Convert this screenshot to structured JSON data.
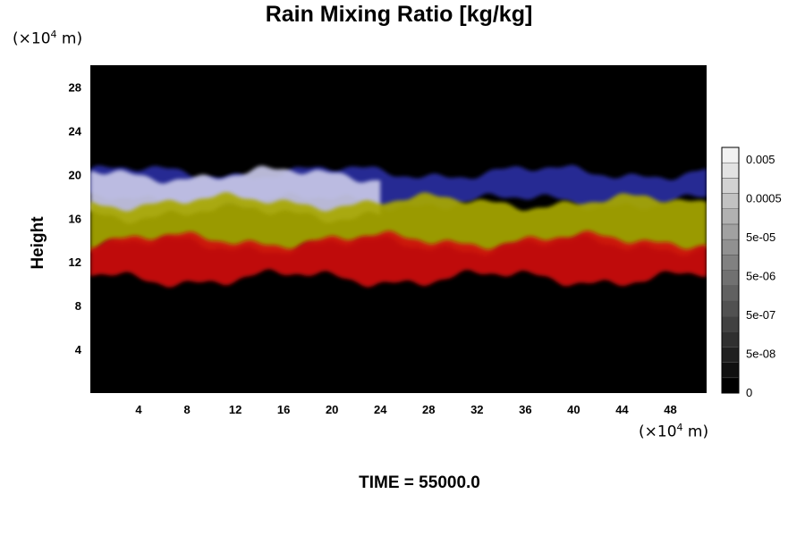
{
  "chart_data": {
    "type": "heatmap",
    "title": "Rain Mixing Ratio [kg/kg]",
    "ylabel": "Height",
    "x_unit": {
      "prefix": "(×10",
      "exp": "4",
      "suffix": " m)"
    },
    "y_unit": {
      "prefix": "(×10",
      "exp": "4",
      "suffix": " m)"
    },
    "xlim": [
      0,
      51
    ],
    "ylim": [
      0,
      30
    ],
    "x_ticks": [
      4,
      8,
      12,
      16,
      20,
      24,
      28,
      32,
      36,
      40,
      44,
      48
    ],
    "y_ticks": [
      4,
      8,
      12,
      16,
      20,
      24,
      28
    ],
    "colorbar": {
      "labels": [
        "0.005",
        "0.0005",
        "5e-05",
        "5e-06",
        "5e-07",
        "5e-08",
        "0"
      ],
      "levels": 16,
      "min_color": "#000000",
      "max_color": "#f2f2f2"
    },
    "layers": [
      {
        "color": "#2b2fa0",
        "y_range": [
          17.5,
          20.2
        ],
        "x_range": [
          0,
          51
        ]
      },
      {
        "color": "#c8c8e8",
        "y_range": [
          16.5,
          20.0
        ],
        "x_range": [
          0,
          24
        ]
      },
      {
        "color": "#a8a800",
        "y_range": [
          13.5,
          17.5
        ],
        "x_range": [
          0,
          51
        ]
      },
      {
        "color": "#d01010",
        "y_range": [
          10.5,
          14.0
        ],
        "x_range": [
          0,
          51
        ]
      }
    ],
    "background_color": "#000000"
  },
  "footer": {
    "time_label": "TIME = 55000.0"
  }
}
